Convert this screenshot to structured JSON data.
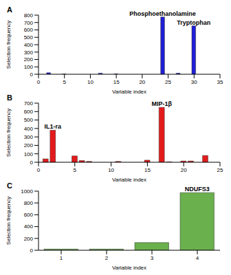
{
  "chart_data": [
    {
      "type": "bar",
      "title": "A",
      "x": [
        2,
        5,
        12,
        15,
        24,
        27,
        30
      ],
      "values": [
        20,
        3,
        15,
        5,
        775,
        15,
        655
      ],
      "color": "#1f1fd6",
      "xlim": [
        0,
        35
      ],
      "xticks": [
        0,
        5,
        10,
        15,
        20,
        25,
        30,
        35
      ],
      "ylim": [
        0,
        800
      ],
      "yticks": [
        0,
        100,
        200,
        300,
        400,
        500,
        600,
        700,
        800
      ],
      "x_label": "Variable index",
      "y_label": "Selection frequency",
      "annotations": [
        {
          "x": 24,
          "text": "Phosphoethanolamine"
        },
        {
          "x": 30,
          "text": "Tryptophan"
        }
      ]
    },
    {
      "type": "bar",
      "title": "B",
      "x": [
        1,
        2,
        5,
        6,
        7,
        11,
        15,
        17,
        18,
        20,
        21,
        23
      ],
      "values": [
        40,
        380,
        75,
        20,
        10,
        10,
        25,
        650,
        5,
        15,
        15,
        80
      ],
      "color": "#e31a1c",
      "xlim": [
        0,
        25
      ],
      "xticks": [
        0,
        5,
        10,
        15,
        20,
        25
      ],
      "ylim": [
        0,
        700
      ],
      "yticks": [
        0,
        100,
        200,
        300,
        400,
        500,
        600,
        700
      ],
      "x_label": "Variable index",
      "y_label": "Selection frequency",
      "annotations": [
        {
          "x": 2,
          "text": "IL1-ra"
        },
        {
          "x": 17,
          "text": "MIP-1β"
        }
      ]
    },
    {
      "type": "bar",
      "title": "C",
      "x": [
        1,
        2,
        3,
        4
      ],
      "values": [
        20,
        20,
        130,
        975
      ],
      "color": "#6ab04c",
      "xlim": [
        0.5,
        4.5
      ],
      "xticks": [
        1,
        2,
        3,
        4
      ],
      "ylim": [
        0,
        1000
      ],
      "yticks": [
        0,
        200,
        400,
        600,
        800,
        1000
      ],
      "x_label": "Variable index",
      "y_label": "Selection frequency",
      "annotations": [
        {
          "x": 4,
          "text": "NDUFS3"
        }
      ]
    }
  ]
}
